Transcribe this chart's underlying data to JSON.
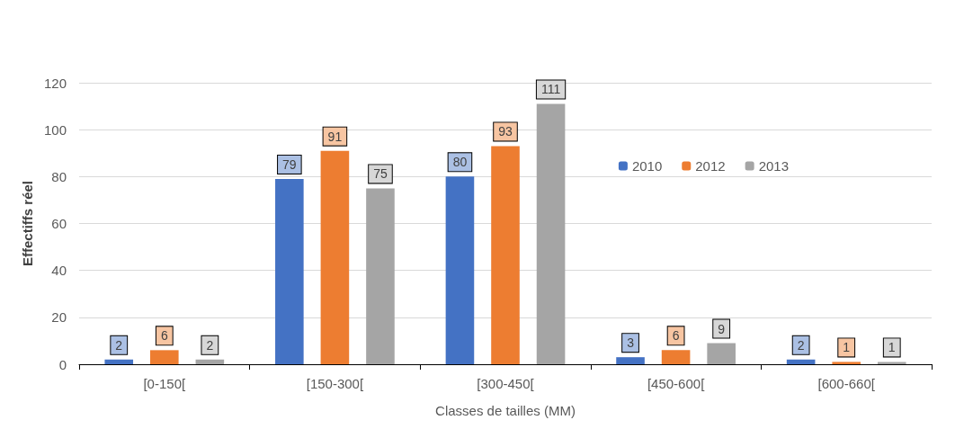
{
  "chart_data": {
    "type": "bar",
    "xlabel": "Classes de tailles (MM)",
    "ylabel": "Effectiffs réel",
    "categories": [
      "[0-150[",
      "[150-300[",
      "[300-450[",
      "[450-600[",
      "[600-660["
    ],
    "series": [
      {
        "name": "2010",
        "color": "#4472c4",
        "values": [
          2,
          79,
          80,
          3,
          2
        ]
      },
      {
        "name": "2012",
        "color": "#ed7d31",
        "values": [
          6,
          91,
          93,
          6,
          1
        ]
      },
      {
        "name": "2013",
        "color": "#a5a5a5",
        "values": [
          2,
          75,
          111,
          9,
          1
        ]
      }
    ],
    "ylim": [
      0,
      120
    ],
    "yticks": [
      0,
      20,
      40,
      60,
      80,
      100,
      120
    ],
    "grid": "y",
    "legend": "top right",
    "data_labels": true
  }
}
